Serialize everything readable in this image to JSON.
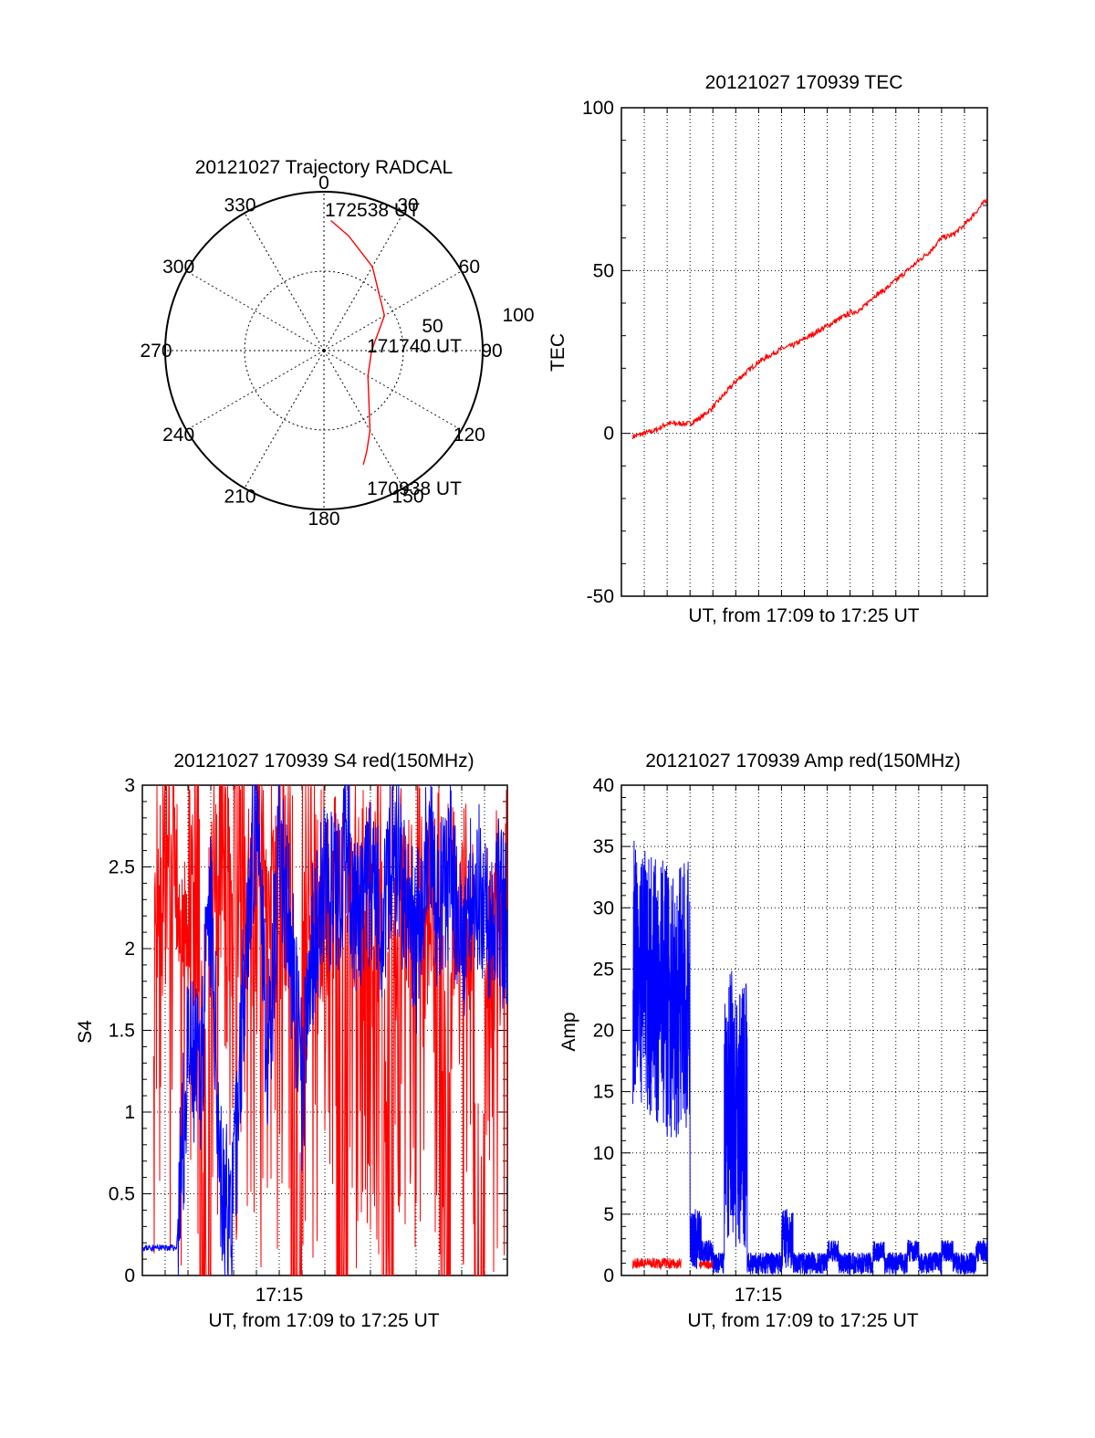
{
  "chart_data": [
    {
      "type": "polar",
      "title": "20121027 Trajectory RADCAL",
      "azimuth_ticks": [
        "0",
        "30",
        "60",
        "90",
        "120",
        "150",
        "180",
        "210",
        "240",
        "270",
        "300",
        "330"
      ],
      "radial_ticks": [
        "50",
        "100"
      ],
      "series": [
        {
          "color": "#ff0000",
          "azimuth_deg": [
            3,
            12,
            30,
            60,
            90,
            120,
            150,
            157,
            161
          ],
          "radius": [
            82,
            74,
            61,
            44,
            30,
            32,
            58,
            69,
            76
          ]
        }
      ],
      "annotations": [
        "172538 UT",
        "171740 UT",
        "170938 UT"
      ]
    },
    {
      "type": "line",
      "title": "20121027 170939 TEC",
      "xlabel": "UT, from 17:09 to 17:25 UT",
      "ylabel": "TEC",
      "yticks": [
        "-50",
        "0",
        "50",
        "100"
      ],
      "ylim": [
        -50,
        100
      ],
      "xlim_min": [
        9.0,
        25.0
      ],
      "grid": true,
      "series": [
        {
          "color": "#ff0000",
          "x_min": [
            9.5,
            10.0,
            10.5,
            11.0,
            11.5,
            12.0,
            12.5,
            13.0,
            13.5,
            14.0,
            14.5,
            15.0,
            15.5,
            16.0,
            16.5,
            17.0,
            17.5,
            18.0,
            18.5,
            19.0,
            19.5,
            20.0,
            20.5,
            21.0,
            21.5,
            22.0,
            22.5,
            23.0,
            23.5,
            24.0,
            24.5,
            25.0
          ],
          "values": [
            -1,
            0,
            1,
            3,
            3,
            3,
            5,
            8,
            12,
            16,
            19,
            22,
            24,
            26,
            27,
            29,
            31,
            33,
            35,
            37,
            38,
            42,
            44,
            47,
            50,
            53,
            56,
            60,
            61,
            64,
            68,
            72
          ]
        }
      ]
    },
    {
      "type": "line",
      "title": "20121027 170939 S4 red(150MHz)",
      "xlabel": "UT, from 17:09 to 17:25 UT",
      "ylabel": "S4",
      "yticks": [
        "0",
        "0.5",
        "1",
        "1.5",
        "2",
        "2.5",
        "3"
      ],
      "xticks": [
        "17:15"
      ],
      "ylim": [
        0,
        3
      ],
      "xlim_min": [
        9.0,
        25.0
      ],
      "grid": true,
      "series": [
        {
          "color": "#ff0000",
          "x_min": [
            9.5,
            10.0,
            10.5,
            11.0,
            11.5,
            12.0,
            12.5,
            13.0,
            13.5,
            14.0,
            14.5,
            15.0,
            15.5,
            16.0,
            16.5,
            17.0,
            17.5,
            18.0,
            18.5,
            19.0,
            19.5,
            20.0,
            20.5,
            21.0,
            21.5,
            22.0,
            22.5,
            23.0,
            23.5,
            24.0,
            24.5,
            25.0
          ],
          "values": [
            2.8,
            2.9,
            2.6,
            2.7,
            0.0,
            2.9,
            2.8,
            3.0,
            2.7,
            2.9,
            2.6,
            2.8,
            0.0,
            2.9,
            2.7,
            2.6,
            0.0,
            2.8,
            2.5,
            2.7,
            0.0,
            2.6,
            2.4,
            2.7,
            2.5,
            0.0,
            2.4,
            2.6,
            0.0,
            2.3,
            2.5,
            0.0
          ]
        },
        {
          "color": "#0000ff",
          "x_min": [
            9.0,
            9.5,
            10.0,
            10.5,
            11.0,
            11.5,
            12.0,
            12.5,
            13.0,
            13.5,
            14.0,
            14.5,
            15.0,
            15.5,
            16.0,
            16.5,
            17.0,
            17.5,
            18.0,
            18.5,
            19.0,
            19.5,
            20.0,
            20.5,
            21.0,
            21.5,
            22.0,
            22.5,
            23.0,
            23.5,
            24.0,
            24.5,
            25.0
          ],
          "values": [
            0.17,
            0.17,
            0.17,
            0.17,
            1.3,
            1.2,
            2.2,
            0.4,
            0.4,
            2.0,
            2.8,
            1.3,
            2.6,
            2.0,
            1.1,
            2.1,
            2.4,
            2.3,
            2.6,
            2.1,
            2.4,
            2.2,
            2.7,
            2.3,
            2.0,
            2.6,
            2.2,
            2.5,
            2.0,
            2.5,
            2.2,
            2.3,
            2.1
          ]
        }
      ]
    },
    {
      "type": "line",
      "title": "20121027 170939 Amp red(150MHz)",
      "xlabel": "UT, from 17:09 to 17:25 UT",
      "ylabel": "Amp",
      "yticks": [
        "0",
        "5",
        "10",
        "15",
        "20",
        "25",
        "30",
        "35",
        "40"
      ],
      "xticks": [
        "17:15"
      ],
      "ylim": [
        0,
        40
      ],
      "xlim_min": [
        9.0,
        25.0
      ],
      "grid": true,
      "series": [
        {
          "color": "#ff0000",
          "x_min": [
            9.5,
            10.0,
            10.5,
            11.0,
            11.5,
            12.5,
            13.0
          ],
          "values": [
            1.0,
            1.0,
            1.0,
            1.0,
            1.0,
            1.0,
            1.0
          ]
        },
        {
          "color": "#0000ff",
          "x_min": [
            9.5,
            10.0,
            10.5,
            11.0,
            11.5,
            12.0,
            12.5,
            13.0,
            13.5,
            14.0,
            14.5,
            15.0,
            15.5,
            16.0,
            16.5,
            17.0,
            17.5,
            18.0,
            18.5,
            19.0,
            19.5,
            20.0,
            20.5,
            21.0,
            21.5,
            22.0,
            22.5,
            23.0,
            23.5,
            24.0,
            24.5,
            25.0
          ],
          "values": [
            25,
            24,
            23,
            22,
            23,
            3,
            2,
            1,
            14,
            13,
            1,
            1,
            1,
            3,
            1,
            1,
            1,
            2,
            1,
            1,
            1,
            2,
            1,
            1,
            2,
            1,
            1,
            2,
            1,
            1,
            2,
            2
          ]
        }
      ]
    }
  ]
}
